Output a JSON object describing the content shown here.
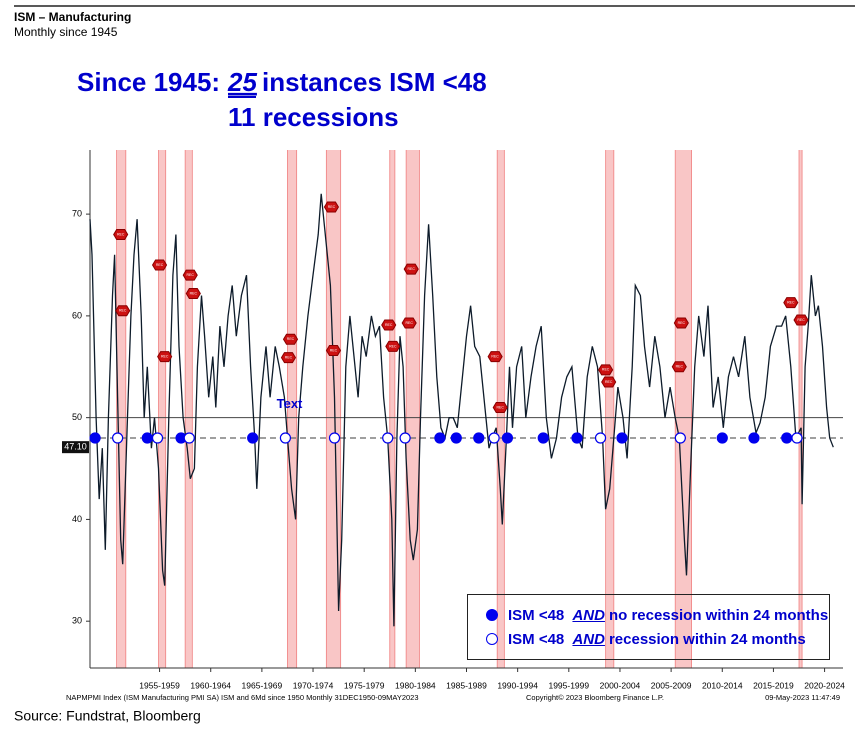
{
  "header": {
    "title": "ISM – Manufacturing",
    "subtitle": "Monthly since 1945"
  },
  "headline": {
    "lead": "Since 1945:",
    "count": "25",
    "rest": "instances ISM <48",
    "line2": "11 recessions"
  },
  "chart_data": {
    "type": "line",
    "x": [
      1950.7,
      1950.9,
      1951.3,
      1951.6,
      1951.9,
      1952.2,
      1952.5,
      1952.9,
      1953.1,
      1953.4,
      1953.7,
      1953.9,
      1954.3,
      1954.7,
      1955.0,
      1955.3,
      1955.7,
      1956.0,
      1956.3,
      1956.7,
      1957.0,
      1957.4,
      1957.8,
      1958.0,
      1958.4,
      1958.8,
      1959.1,
      1959.4,
      1959.8,
      1960.2,
      1960.5,
      1960.9,
      1961.2,
      1961.6,
      1961.9,
      1962.3,
      1962.7,
      1963.0,
      1963.4,
      1963.8,
      1964.2,
      1964.6,
      1965.0,
      1965.5,
      1966.0,
      1966.4,
      1966.8,
      1967.0,
      1967.4,
      1967.9,
      1968.3,
      1968.8,
      1969.2,
      1969.7,
      1970.0,
      1970.4,
      1970.8,
      1971.1,
      1971.5,
      1972.0,
      1972.5,
      1973.0,
      1973.3,
      1973.8,
      1974.2,
      1974.6,
      1975.0,
      1975.3,
      1975.7,
      1976.1,
      1976.5,
      1976.9,
      1977.3,
      1977.7,
      1978.2,
      1978.6,
      1979.0,
      1979.4,
      1979.8,
      1980.2,
      1980.4,
      1980.7,
      1981.0,
      1981.3,
      1981.6,
      1982.0,
      1982.3,
      1982.7,
      1983.0,
      1983.4,
      1983.8,
      1984.2,
      1984.6,
      1985.0,
      1985.4,
      1985.8,
      1986.2,
      1986.6,
      1987.0,
      1987.5,
      1987.9,
      1988.3,
      1988.8,
      1989.2,
      1989.7,
      1990.0,
      1990.4,
      1990.8,
      1991.0,
      1991.4,
      1991.7,
      1992.0,
      1992.4,
      1992.9,
      1993.3,
      1993.8,
      1994.3,
      1994.8,
      1995.3,
      1995.8,
      1996.3,
      1996.8,
      1997.3,
      1997.8,
      1998.4,
      1998.8,
      1999.3,
      1999.8,
      2000.3,
      2000.8,
      2001.1,
      2001.5,
      2001.9,
      2002.3,
      2002.8,
      2003.2,
      2003.7,
      2004.0,
      2004.5,
      2004.9,
      2005.4,
      2005.9,
      2006.4,
      2006.9,
      2007.4,
      2007.9,
      2008.3,
      2008.8,
      2009.0,
      2009.4,
      2009.8,
      2010.2,
      2010.7,
      2011.1,
      2011.6,
      2012.1,
      2012.6,
      2013.1,
      2013.6,
      2014.1,
      2014.7,
      2015.2,
      2015.8,
      2016.2,
      2016.7,
      2017.2,
      2017.8,
      2018.3,
      2018.7,
      2019.2,
      2019.7,
      2020.2,
      2020.3,
      2020.6,
      2020.9,
      2021.2,
      2021.6,
      2021.9,
      2022.3,
      2022.7,
      2023.0,
      2023.35
    ],
    "series": [
      {
        "name": "NAPMPMI Index",
        "color": "#0d1b2a",
        "values": [
          69.5,
          66,
          50,
          42,
          47,
          37,
          50,
          62,
          66,
          52,
          38,
          35.6,
          48,
          60,
          66,
          69.5,
          60,
          50,
          55,
          47,
          50,
          45,
          35,
          33.5,
          50,
          64,
          68,
          57,
          50,
          47,
          44,
          45,
          55,
          62,
          58,
          52,
          56,
          51,
          59,
          55,
          60,
          63,
          58,
          62,
          64,
          55,
          48,
          43,
          52,
          57,
          52,
          57,
          55,
          52,
          48,
          43,
          40,
          50,
          55,
          60,
          64,
          68,
          72,
          67,
          63,
          52,
          31,
          38,
          55,
          60,
          56,
          52,
          58,
          56,
          60,
          58,
          59,
          52,
          48,
          40,
          29.5,
          48,
          58,
          55,
          46,
          38,
          36,
          39,
          50,
          62,
          69,
          62,
          54,
          49,
          48,
          50,
          50,
          49,
          53,
          58,
          61,
          57,
          56,
          52,
          47,
          48,
          49,
          43,
          39.5,
          48,
          55,
          49,
          55,
          57,
          50,
          54,
          57,
          59,
          50,
          46,
          48,
          52,
          54,
          55,
          48,
          47,
          54,
          57,
          55,
          48,
          41,
          43,
          48,
          53,
          50,
          46,
          55,
          63,
          62,
          57,
          53,
          58,
          55,
          50,
          53,
          50,
          48,
          38,
          34.5,
          45,
          55,
          60,
          56,
          61,
          51,
          54,
          49,
          54,
          56,
          54,
          58,
          52,
          48.5,
          49.5,
          52,
          57,
          59,
          59,
          60,
          55,
          48,
          49,
          41.5,
          55,
          59,
          64,
          60,
          61,
          57,
          51,
          48,
          47.1
        ]
      }
    ],
    "last_value": 47.1,
    "last_value_label": "47.10",
    "threshold": 48,
    "reference": 50,
    "recessions": [
      [
        1953.3,
        1954.2
      ],
      [
        1957.4,
        1958.1
      ],
      [
        1960.0,
        1960.7
      ],
      [
        1970.0,
        1970.9
      ],
      [
        1973.8,
        1975.2
      ],
      [
        1980.0,
        1980.5
      ],
      [
        1981.6,
        1982.9
      ],
      [
        1990.5,
        1991.2
      ],
      [
        2001.1,
        2001.9
      ],
      [
        2007.9,
        2009.5
      ],
      [
        2020.0,
        2020.3
      ]
    ],
    "markers": [
      {
        "parts": [
          "ISM <48",
          "AND",
          "no recession within 24 months"
        ],
        "filled": true,
        "color": "#0000ee",
        "x": [
          1951.2,
          1956.3,
          1959.6,
          1966.6,
          1984.9,
          1986.5,
          1988.7,
          1991.5,
          1995.0,
          1998.3,
          2002.7,
          2012.5,
          2015.6,
          2018.8
        ]
      },
      {
        "parts": [
          "ISM <48",
          "AND",
          "recession within 24 months"
        ],
        "filled": false,
        "color": "#0000ee",
        "x": [
          1953.4,
          1957.3,
          1960.4,
          1969.8,
          1974.6,
          1979.8,
          1981.5,
          1990.2,
          2000.6,
          2008.4,
          2019.8
        ]
      }
    ],
    "event_label": "REC",
    "events": {
      "x": [
        1953.6,
        1953.8,
        1957.4,
        1957.9,
        1960.4,
        1960.7,
        1970.2,
        1970.0,
        1974.2,
        1974.4,
        1979.8,
        1980.2,
        1981.8,
        1982.0,
        1990.2,
        1990.7,
        2001.0,
        2001.3,
        2008.2,
        2008.4,
        2019.1,
        2020.1
      ],
      "values": [
        68,
        60.5,
        65,
        56,
        64,
        62.2,
        57.7,
        55.9,
        70.7,
        56.6,
        59.1,
        57,
        59.3,
        64.6,
        56,
        51,
        54.7,
        53.5,
        55,
        59.3,
        61.3,
        59.6
      ]
    },
    "annotation": {
      "text": "Text",
      "x": 1970.2,
      "y": 51.3
    },
    "xlim": [
      1950.7,
      2024.3
    ],
    "ylim": [
      25.4,
      76.3
    ],
    "yticks": [
      30,
      40,
      50,
      60,
      70
    ],
    "xticks": [
      {
        "value": 1957.5,
        "label": "1955-1959"
      },
      {
        "value": 1962.5,
        "label": "1960-1964"
      },
      {
        "value": 1967.5,
        "label": "1965-1969"
      },
      {
        "value": 1972.5,
        "label": "1970-1974"
      },
      {
        "value": 1977.5,
        "label": "1975-1979"
      },
      {
        "value": 1982.5,
        "label": "1980-1984"
      },
      {
        "value": 1987.5,
        "label": "1985-1989"
      },
      {
        "value": 1992.5,
        "label": "1990-1994"
      },
      {
        "value": 1997.5,
        "label": "1995-1999"
      },
      {
        "value": 2002.5,
        "label": "2000-2004"
      },
      {
        "value": 2007.5,
        "label": "2005-2009"
      },
      {
        "value": 2012.5,
        "label": "2010-2014"
      },
      {
        "value": 2017.5,
        "label": "2015-2019"
      },
      {
        "value": 2022.5,
        "label": "2020-2024"
      }
    ],
    "footer_left": "NAPMPMI Index (ISM Manufacturing PMI SA) ISM and 6Md since 1950  Monthly 31DEC1950-09MAY2023",
    "footer_mid": "Copyright© 2023 Bloomberg Finance L.P.",
    "footer_right": "09-May-2023 11:47:49"
  },
  "source": "Source: Fundstrat, Bloomberg"
}
